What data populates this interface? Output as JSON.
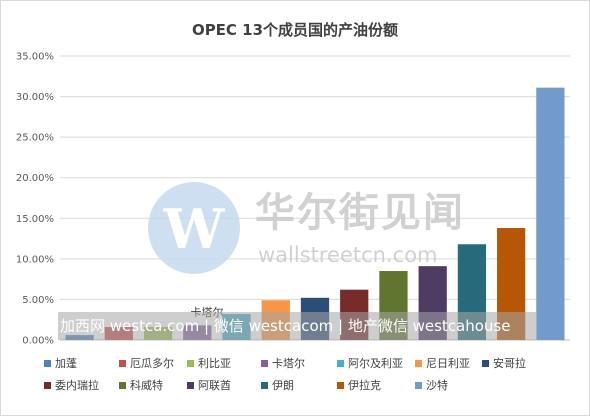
{
  "chart_data": {
    "type": "bar",
    "title": "OPEC 13个成员国的产油份额",
    "ylim": [
      0,
      35
    ],
    "y_ticks": [
      "0.00%",
      "5.00%",
      "10.00%",
      "15.00%",
      "20.00%",
      "25.00%",
      "30.00%",
      "35.00%"
    ],
    "grid": true,
    "legend_position": "bottom",
    "categories": [
      "加蓬",
      "厄瓜多尔",
      "利比亚",
      "卡塔尔",
      "阿尔及利亚",
      "尼日利亚",
      "安哥拉",
      "委内瑞拉",
      "科威特",
      "阿联酋",
      "伊朗",
      "伊拉克",
      "沙特"
    ],
    "values": [
      0.6,
      1.6,
      1.6,
      1.8,
      3.2,
      4.9,
      5.2,
      6.2,
      8.5,
      9.1,
      11.8,
      13.8,
      31.1
    ],
    "colors": [
      "#4f81bd",
      "#c0504d",
      "#9bbb59",
      "#8064a2",
      "#4bacc6",
      "#f79646",
      "#2c4d75",
      "#772c2a",
      "#5f7530",
      "#4d3b62",
      "#276a7c",
      "#b65708",
      "#729aca"
    ]
  },
  "watermark": {
    "logo_letter": "W",
    "name_cn": "华尔街见闻",
    "name_en": "wallstreetcn.com",
    "overlay": "加西网 westca.com | 微信 westcacom | 地产微信 westcahouse",
    "stray_label": "卡塔尔"
  }
}
